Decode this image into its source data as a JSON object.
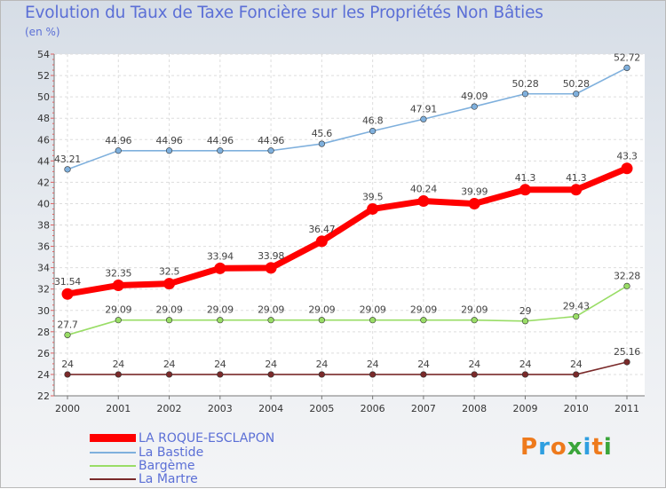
{
  "chart_data": {
    "type": "line",
    "title": "Evolution du Taux de Taxe Foncière sur les Propriétés Non Bâties",
    "subtitle": "(en %)",
    "x": [
      "2000",
      "2001",
      "2002",
      "2003",
      "2004",
      "2005",
      "2006",
      "2007",
      "2008",
      "2009",
      "2010",
      "2011"
    ],
    "ylim": [
      22,
      54
    ],
    "yticks": [
      22,
      24,
      26,
      28,
      30,
      32,
      34,
      36,
      38,
      40,
      42,
      44,
      46,
      48,
      50,
      52,
      54
    ],
    "grid": true,
    "legend_position": "bottom-left",
    "series": [
      {
        "name": "LA ROQUE-ESCLAPON",
        "color": "#ff0000",
        "values": [
          31.54,
          32.35,
          32.5,
          33.94,
          33.98,
          36.47,
          39.5,
          40.24,
          39.99,
          41.3,
          41.3,
          43.3
        ],
        "labels": [
          "31.54",
          "32.35",
          "32.5",
          "33.94",
          "33.98",
          "36.47",
          "39.5",
          "40.24",
          "39.99",
          "41.3",
          "41.3",
          "43.3"
        ]
      },
      {
        "name": "La Bastide",
        "color": "#7fb0dd",
        "values": [
          43.21,
          44.96,
          44.96,
          44.96,
          44.96,
          45.6,
          46.8,
          47.91,
          49.09,
          50.28,
          50.28,
          52.72
        ],
        "labels": [
          "43.21",
          "44.96",
          "44.96",
          "44.96",
          "44.96",
          "45.6",
          "46.8",
          "47.91",
          "49.09",
          "50.28",
          "50.28",
          "52.72"
        ]
      },
      {
        "name": "Bargème",
        "color": "#99dd66",
        "values": [
          27.7,
          29.09,
          29.09,
          29.09,
          29.09,
          29.09,
          29.09,
          29.09,
          29.09,
          29.0,
          29.43,
          32.28
        ],
        "labels": [
          "27.7",
          "29.09",
          "29.09",
          "29.09",
          "29.09",
          "29.09",
          "29.09",
          "29.09",
          "29.09",
          "29",
          "29.43",
          "32.28"
        ]
      },
      {
        "name": "La Martre",
        "color": "#7a2a2a",
        "values": [
          24,
          24,
          24,
          24,
          24,
          24,
          24,
          24,
          24,
          24,
          24,
          25.16
        ],
        "labels": [
          "24",
          "24",
          "24",
          "24",
          "24",
          "24",
          "24",
          "24",
          "24",
          "24",
          "24",
          "25.16"
        ]
      }
    ]
  },
  "logo": {
    "text": "Proxiti",
    "letters": [
      "P",
      "r",
      "o",
      "x",
      "i",
      "t",
      "i"
    ],
    "colors": [
      "#ee7a1c",
      "#2f9fe0",
      "#ee7a1c",
      "#3aa53a",
      "#2f9fe0",
      "#ee7a1c",
      "#3aa53a"
    ]
  }
}
